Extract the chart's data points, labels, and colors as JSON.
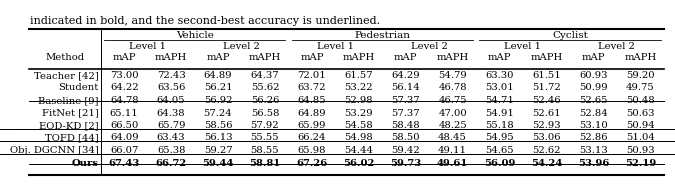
{
  "header_text": "indicated in bold, and the second-best accuracy is underlined.",
  "rows": [
    {
      "method": "Teacher [42]",
      "values": [
        73.0,
        72.43,
        64.89,
        64.37,
        72.01,
        61.57,
        64.29,
        54.79,
        63.3,
        61.51,
        60.93,
        59.2
      ],
      "bold": [],
      "underline": [],
      "group": "teacher"
    },
    {
      "method": "Student",
      "values": [
        64.22,
        63.56,
        56.21,
        55.62,
        63.72,
        53.22,
        56.14,
        46.78,
        53.01,
        51.72,
        50.99,
        49.75
      ],
      "bold": [],
      "underline": [],
      "group": "teacher"
    },
    {
      "method": "Baseline [9]",
      "values": [
        64.78,
        64.05,
        56.92,
        56.26,
        64.85,
        52.98,
        57.37,
        46.75,
        54.71,
        52.46,
        52.65,
        50.48
      ],
      "bold": [],
      "underline": [],
      "group": "baseline"
    },
    {
      "method": "FitNet [21]",
      "values": [
        65.11,
        64.38,
        57.24,
        56.58,
        64.89,
        53.29,
        57.37,
        47.0,
        54.91,
        52.61,
        52.84,
        50.63
      ],
      "bold": [],
      "underline": [],
      "group": "baseline"
    },
    {
      "method": "EOD-KD [2]",
      "values": [
        66.5,
        65.79,
        58.56,
        57.92,
        65.99,
        54.58,
        58.48,
        48.25,
        55.18,
        52.93,
        53.1,
        50.94
      ],
      "bold": [],
      "underline": [
        0,
        8
      ],
      "group": "baseline"
    },
    {
      "method": "TOFD [44]",
      "values": [
        64.09,
        63.43,
        56.13,
        55.55,
        66.24,
        54.98,
        58.5,
        48.45,
        54.95,
        53.06,
        52.86,
        51.04
      ],
      "bold": [],
      "underline": [
        4,
        5,
        9,
        11
      ],
      "group": "baseline"
    },
    {
      "method": "Obj. DGCNN [34]",
      "values": [
        66.07,
        65.38,
        59.27,
        58.55,
        65.98,
        54.44,
        59.42,
        49.11,
        54.65,
        52.62,
        53.13,
        50.93
      ],
      "bold": [],
      "underline": [
        2,
        3,
        6,
        7
      ],
      "group": "baseline"
    },
    {
      "method": "Ours",
      "values": [
        67.43,
        66.72,
        59.44,
        58.81,
        67.26,
        56.02,
        59.73,
        49.61,
        56.09,
        54.24,
        53.96,
        52.19
      ],
      "bold": [
        0,
        1,
        2,
        3,
        4,
        5,
        6,
        7,
        8,
        9,
        10,
        11
      ],
      "underline": [],
      "group": "ours"
    }
  ],
  "bg_color": "#ffffff",
  "font_size": 7.2,
  "header_font_size": 8.0
}
